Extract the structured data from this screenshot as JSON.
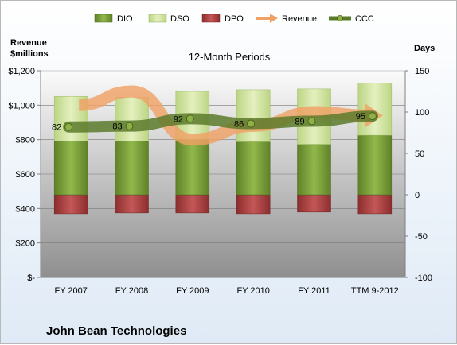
{
  "chart_data": {
    "type": "bar",
    "title": "12-Month Periods",
    "company": "John Bean Technologies",
    "ylabel_left": "Revenue $millions",
    "ylabel_right": "Days",
    "categories": [
      "FY 2007",
      "FY 2008",
      "FY 2009",
      "FY 2010",
      "FY 2011",
      "TTM 9-2012"
    ],
    "left_axis": {
      "min": 0,
      "max": 1200,
      "ticks": [
        0,
        200,
        400,
        600,
        800,
        1000,
        1200
      ],
      "tick_labels": [
        "$-",
        "$200",
        "$400",
        "$600",
        "$800",
        "$1,000",
        "$1,200"
      ]
    },
    "right_axis": {
      "min": -100,
      "max": 150,
      "ticks": [
        -100,
        -50,
        0,
        50,
        100,
        150
      ],
      "tick_labels": [
        "-100",
        "-50",
        "0",
        "50",
        "100",
        "150"
      ]
    },
    "legend": [
      "DIO",
      "DSO",
      "DPO",
      "Revenue",
      "CCC"
    ],
    "legend_position": "top",
    "series": [
      {
        "name": "DIO",
        "type": "stacked-bar",
        "axis": "right",
        "color": "#7ea33a",
        "values": [
          65,
          65,
          67,
          64,
          61,
          72
        ]
      },
      {
        "name": "DSO",
        "type": "stacked-bar",
        "axis": "right",
        "color": "#d2e5a0",
        "values": [
          54,
          53,
          58,
          63,
          67,
          63
        ]
      },
      {
        "name": "DPO",
        "type": "stacked-bar",
        "axis": "right",
        "color": "#b24848",
        "values": [
          -23,
          -22,
          -22,
          -23,
          -21,
          -23
        ]
      },
      {
        "name": "Revenue",
        "type": "line",
        "axis": "left",
        "color": "#f0a165",
        "values": [
          1000,
          1080,
          800,
          880,
          960,
          940
        ]
      },
      {
        "name": "CCC",
        "type": "line",
        "axis": "right",
        "color": "#5c7a2c",
        "values": [
          82,
          83,
          92,
          86,
          89,
          95
        ],
        "labels": [
          "82",
          "83",
          "92",
          "86",
          "89",
          "95"
        ]
      }
    ],
    "grid": true
  }
}
